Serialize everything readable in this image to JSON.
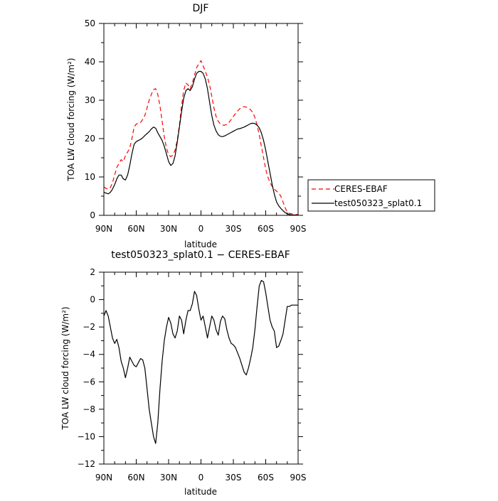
{
  "chart_data": [
    {
      "type": "line",
      "title": "DJF",
      "xlabel": "latitude",
      "ylabel": "TOA LW cloud forcing (W/m²)",
      "ylim": [
        0,
        50
      ],
      "xlim": [
        90,
        -90
      ],
      "xticks": [
        90,
        60,
        30,
        0,
        -30,
        -60,
        -90
      ],
      "xtick_labels": [
        "90N",
        "60N",
        "30N",
        "0",
        "30S",
        "60S",
        "90S"
      ],
      "yticks": [
        0,
        10,
        20,
        30,
        40,
        50
      ],
      "ytick_labels": [
        "0",
        "10",
        "20",
        "30",
        "40",
        "50"
      ],
      "legend_position": "outside-right",
      "series": [
        {
          "name": "CERES-EBAF",
          "color": "#ff0000",
          "dash": "dashed",
          "x": [
            90,
            88,
            86,
            84,
            82,
            80,
            78,
            76,
            74,
            72,
            70,
            68,
            66,
            64,
            62,
            60,
            58,
            56,
            54,
            52,
            50,
            48,
            46,
            44,
            42,
            40,
            38,
            36,
            34,
            32,
            30,
            28,
            26,
            24,
            22,
            20,
            18,
            16,
            14,
            12,
            10,
            8,
            6,
            4,
            2,
            0,
            -2,
            -4,
            -6,
            -8,
            -10,
            -12,
            -14,
            -16,
            -18,
            -20,
            -22,
            -24,
            -26,
            -28,
            -30,
            -32,
            -34,
            -36,
            -38,
            -40,
            -42,
            -44,
            -46,
            -48,
            -50,
            -52,
            -54,
            -56,
            -58,
            -60,
            -62,
            -64,
            -66,
            -68,
            -70,
            -72,
            -74,
            -76,
            -78,
            -80,
            -82,
            -84,
            -86,
            -88,
            -90
          ],
          "y": [
            7.4,
            7.0,
            6.8,
            7.2,
            8.5,
            10.5,
            12.5,
            13.5,
            14.5,
            14.0,
            15.5,
            16.5,
            17.5,
            20.0,
            23.0,
            23.8,
            24.0,
            24.2,
            25.0,
            26.0,
            28.0,
            30.0,
            31.5,
            32.8,
            33.0,
            31.5,
            28.5,
            24.5,
            20.5,
            17.5,
            15.8,
            15.3,
            15.7,
            17.0,
            19.5,
            23.5,
            28.5,
            32.5,
            34.5,
            34.0,
            33.0,
            34.5,
            36.5,
            38.5,
            39.5,
            40.3,
            39.0,
            37.5,
            36.0,
            34.0,
            31.0,
            28.0,
            25.8,
            24.5,
            23.8,
            23.5,
            23.5,
            23.7,
            24.2,
            25.0,
            25.8,
            26.5,
            27.2,
            27.8,
            28.2,
            28.3,
            28.2,
            27.9,
            27.5,
            26.8,
            25.5,
            23.5,
            21.0,
            18.0,
            15.0,
            12.0,
            10.0,
            8.5,
            7.5,
            6.8,
            6.3,
            5.8,
            5.0,
            3.5,
            2.0,
            0.8,
            0.5,
            0.4,
            0.3,
            0.2,
            0.2
          ]
        },
        {
          "name": "test050323_splat0.1",
          "color": "#000000",
          "dash": "solid",
          "x": [
            90,
            88,
            86,
            84,
            82,
            80,
            78,
            76,
            74,
            72,
            70,
            68,
            66,
            64,
            62,
            60,
            58,
            56,
            54,
            52,
            50,
            48,
            46,
            44,
            42,
            40,
            38,
            36,
            34,
            32,
            30,
            28,
            26,
            24,
            22,
            20,
            18,
            16,
            14,
            12,
            10,
            8,
            6,
            4,
            2,
            0,
            -2,
            -4,
            -6,
            -8,
            -10,
            -12,
            -14,
            -16,
            -18,
            -20,
            -22,
            -24,
            -26,
            -28,
            -30,
            -32,
            -34,
            -36,
            -38,
            -40,
            -42,
            -44,
            -46,
            -48,
            -50,
            -52,
            -54,
            -56,
            -58,
            -60,
            -62,
            -64,
            -66,
            -68,
            -70,
            -72,
            -74,
            -76,
            -78,
            -80,
            -82,
            -84,
            -86,
            -88,
            -90
          ],
          "y": [
            6.0,
            5.8,
            5.6,
            6.0,
            6.8,
            8.0,
            9.5,
            10.5,
            10.5,
            9.5,
            9.2,
            10.5,
            13.0,
            16.0,
            18.5,
            19.2,
            19.5,
            19.8,
            20.2,
            20.8,
            21.3,
            21.8,
            22.5,
            23.0,
            22.7,
            21.5,
            20.5,
            19.5,
            18.0,
            16.0,
            14.0,
            13.0,
            13.5,
            15.5,
            19.0,
            23.0,
            27.0,
            30.5,
            32.5,
            33.0,
            32.5,
            33.5,
            35.5,
            37.0,
            37.5,
            37.5,
            37.0,
            35.5,
            33.0,
            29.5,
            26.0,
            23.5,
            22.0,
            21.0,
            20.6,
            20.5,
            20.7,
            21.0,
            21.3,
            21.6,
            21.9,
            22.2,
            22.5,
            22.6,
            22.8,
            23.0,
            23.3,
            23.6,
            23.9,
            24.0,
            23.9,
            23.5,
            22.8,
            21.5,
            19.5,
            17.0,
            14.0,
            11.0,
            8.0,
            5.5,
            3.5,
            2.5,
            1.8,
            1.2,
            0.7,
            0.4,
            0.2,
            0.1,
            0.1,
            0.05,
            0.05
          ]
        }
      ]
    },
    {
      "type": "line",
      "title": "test050323_splat0.1 − CERES-EBAF",
      "xlabel": "latitude",
      "ylabel": "TOA LW cloud forcing (W/m²)",
      "ylim": [
        -12,
        2
      ],
      "xlim": [
        90,
        -90
      ],
      "xticks": [
        90,
        60,
        30,
        0,
        -30,
        -60,
        -90
      ],
      "xtick_labels": [
        "90N",
        "60N",
        "30N",
        "0",
        "30S",
        "60S",
        "90S"
      ],
      "yticks": [
        -12,
        -10,
        -8,
        -6,
        -4,
        -2,
        0,
        2
      ],
      "ytick_labels": [
        "−12",
        "−10",
        "−8",
        "−6",
        "−4",
        "−2",
        "0",
        "2"
      ],
      "series": [
        {
          "name": "",
          "color": "#000000",
          "dash": "solid",
          "x": [
            90,
            88,
            86,
            84,
            82,
            80,
            78,
            76,
            74,
            72,
            70,
            68,
            66,
            64,
            62,
            60,
            58,
            56,
            54,
            52,
            50,
            48,
            46,
            44,
            42,
            40,
            38,
            36,
            34,
            32,
            30,
            28,
            26,
            24,
            22,
            20,
            18,
            16,
            14,
            12,
            10,
            8,
            6,
            4,
            2,
            0,
            -2,
            -4,
            -6,
            -8,
            -10,
            -12,
            -14,
            -16,
            -18,
            -20,
            -22,
            -24,
            -26,
            -28,
            -30,
            -32,
            -34,
            -36,
            -38,
            -40,
            -42,
            -44,
            -46,
            -48,
            -50,
            -52,
            -54,
            -56,
            -58,
            -60,
            -62,
            -64,
            -66,
            -68,
            -70,
            -72,
            -74,
            -76,
            -78,
            -80,
            -82,
            -84,
            -86,
            -88,
            -90
          ],
          "y": [
            -1.2,
            -0.8,
            -1.2,
            -2.0,
            -2.8,
            -3.2,
            -2.9,
            -3.5,
            -4.5,
            -5.0,
            -5.7,
            -5.0,
            -4.2,
            -4.5,
            -4.8,
            -4.9,
            -4.6,
            -4.3,
            -4.4,
            -5.0,
            -6.5,
            -8.0,
            -9.0,
            -10.0,
            -10.5,
            -9.0,
            -6.5,
            -4.5,
            -3.0,
            -2.0,
            -1.3,
            -1.7,
            -2.5,
            -2.8,
            -2.3,
            -1.2,
            -1.5,
            -2.5,
            -1.5,
            -0.8,
            -0.8,
            -0.3,
            0.6,
            0.3,
            -0.7,
            -1.5,
            -1.2,
            -2.0,
            -2.8,
            -2.0,
            -1.2,
            -1.5,
            -2.2,
            -2.6,
            -1.6,
            -1.2,
            -1.4,
            -2.2,
            -2.8,
            -3.2,
            -3.3,
            -3.5,
            -3.9,
            -4.3,
            -4.8,
            -5.3,
            -5.5,
            -5.0,
            -4.3,
            -3.5,
            -2.2,
            -0.5,
            1.0,
            1.4,
            1.3,
            0.5,
            -0.5,
            -1.5,
            -2.0,
            -2.3,
            -3.5,
            -3.4,
            -3.0,
            -2.5,
            -1.5,
            -0.5,
            -0.5,
            -0.4,
            -0.4,
            -0.4,
            -0.4
          ]
        }
      ]
    }
  ]
}
